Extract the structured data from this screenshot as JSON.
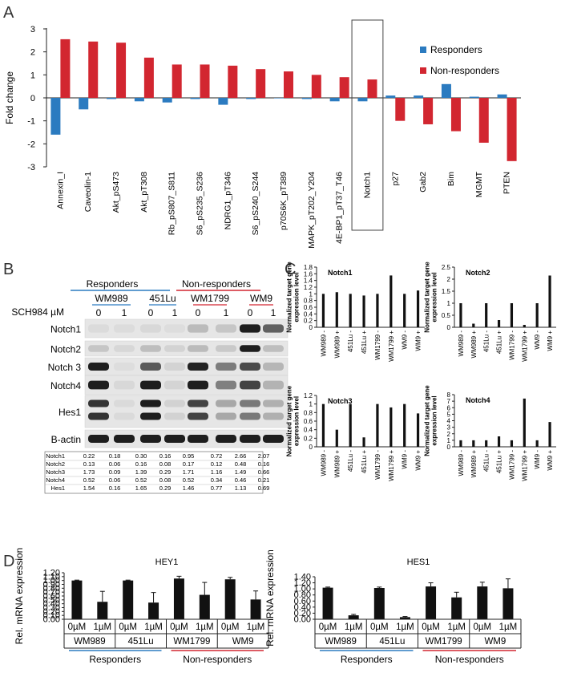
{
  "panel_labels": {
    "a": "A",
    "b": "B",
    "c": "C",
    "d": "D"
  },
  "colors": {
    "responders": "#2b7bc0",
    "non_responders": "#d22630",
    "bar": "#111111"
  },
  "chart_data": [
    {
      "id": "A",
      "type": "bar",
      "ylabel": "Fold change",
      "ylim": [
        -3,
        3
      ],
      "yticks": [
        "3",
        "2",
        "1",
        "0",
        "-1",
        "-2",
        "-3"
      ],
      "categories": [
        "Annexin_I",
        "Caveolin-1",
        "Akt_pS473",
        "Akt_pT308",
        "Rb_pS807_S811",
        "S6_pS235_S236",
        "NDRG1_pT346",
        "S6_pS240_S244",
        "p70S6K_pT389",
        "MAPK_pT202_Y204",
        "4E-BP1_pT37_T46",
        "Notch1",
        "p27",
        "Gab2",
        "Bim",
        "MGMT",
        "PTEN"
      ],
      "highlighted": "Notch1",
      "series": [
        {
          "name": "Responders",
          "values": [
            -1.6,
            -0.5,
            -0.05,
            -0.15,
            -0.2,
            -0.05,
            -0.3,
            -0.05,
            0.0,
            -0.05,
            -0.15,
            -0.15,
            0.1,
            0.1,
            0.6,
            0.05,
            0.15
          ]
        },
        {
          "name": "Non-responders",
          "values": [
            2.55,
            2.45,
            2.4,
            1.75,
            1.45,
            1.45,
            1.4,
            1.25,
            1.15,
            1.0,
            0.9,
            0.8,
            -1.0,
            -1.15,
            -1.45,
            -1.95,
            -2.75
          ]
        }
      ],
      "legend": [
        "Responders",
        "Non-responders"
      ]
    },
    {
      "id": "C-Notch1",
      "type": "bar",
      "title": "Notch1",
      "ylabel": "Normalized target gene expression level",
      "ylim": [
        0,
        1.8
      ],
      "yticks": [
        "0",
        "0.2",
        "0.4",
        "0.6",
        "0.8",
        "1",
        "1.2",
        "1.4",
        "1.6",
        "1.8"
      ],
      "categories": [
        "WM989 -",
        "WM989 +",
        "451Lu -",
        "451Lu +",
        "WM1799 -",
        "WM1799 +",
        "WM9 -",
        "WM9 +"
      ],
      "values": [
        1.0,
        1.05,
        1.0,
        0.95,
        1.0,
        1.55,
        1.0,
        1.1
      ]
    },
    {
      "id": "C-Notch2",
      "type": "bar",
      "title": "Notch2",
      "ylabel": "Normalized target gene expression level",
      "ylim": [
        0,
        2.5
      ],
      "yticks": [
        "0",
        "0.5",
        "1",
        "1.5",
        "2",
        "2.5"
      ],
      "categories": [
        "WM989 -",
        "WM989 +",
        "451Lu -",
        "451Lu +",
        "WM1799 -",
        "WM1799 +",
        "WM9 -",
        "WM9 +"
      ],
      "values": [
        1.0,
        0.15,
        1.0,
        0.3,
        1.0,
        0.1,
        1.0,
        2.15
      ]
    },
    {
      "id": "C-Notch3",
      "type": "bar",
      "title": "Notch3",
      "ylabel": "Normalized target gene expression level",
      "ylim": [
        0,
        1.2
      ],
      "yticks": [
        "0",
        "0.2",
        "0.4",
        "0.6",
        "0.8",
        "1",
        "1.2"
      ],
      "categories": [
        "WM989 -",
        "WM989 +",
        "451Lu -",
        "451Lu +",
        "WM1799 -",
        "WM1799 +",
        "WM9 -",
        "WM9 +"
      ],
      "values": [
        1.0,
        0.4,
        1.0,
        0.22,
        1.0,
        0.92,
        1.0,
        0.78
      ]
    },
    {
      "id": "C-Notch4",
      "type": "bar",
      "title": "Notch4",
      "ylabel": "Normalized target gene expression level",
      "ylim": [
        0,
        8
      ],
      "yticks": [
        "0",
        "1",
        "2",
        "3",
        "4",
        "5",
        "6",
        "7",
        "8"
      ],
      "categories": [
        "WM989 -",
        "WM989 +",
        "451Lu -",
        "451Lu +",
        "WM1799 -",
        "WM1799 +",
        "WM9 -",
        "WM9 +"
      ],
      "values": [
        1.0,
        1.0,
        1.0,
        1.6,
        1.0,
        7.4,
        1.0,
        3.8
      ]
    },
    {
      "id": "D-HEY1",
      "type": "bar",
      "title": "HEY1",
      "ylabel": "Rel. mRNA expression",
      "ylim": [
        0,
        1.2
      ],
      "yticks": [
        "0.00",
        "0.10",
        "0.20",
        "0.30",
        "0.40",
        "0.50",
        "0.60",
        "0.70",
        "0.80",
        "0.90",
        "1.00",
        "1.10",
        "1.20"
      ],
      "categories": [
        "0µM",
        "1µM",
        "0µM",
        "1µM",
        "0µM",
        "1µM",
        "0µM",
        "1µM"
      ],
      "values": [
        1.0,
        0.45,
        1.0,
        0.43,
        1.05,
        0.63,
        1.03,
        0.51
      ],
      "errors": [
        0.01,
        0.27,
        0.01,
        0.26,
        0.06,
        0.32,
        0.05,
        0.22
      ],
      "cell_lines": [
        "WM989",
        "451Lu",
        "WM1799",
        "WM9"
      ],
      "groups": [
        "Responders",
        "Non-responders"
      ]
    },
    {
      "id": "D-HES1",
      "type": "bar",
      "title": "HES1",
      "ylabel": "Rel. mRNA expression",
      "ylim": [
        0,
        1.4
      ],
      "yticks": [
        "0.00",
        "0.20",
        "0.40",
        "0.60",
        "0.80",
        "1.00",
        "1.20",
        "1.40"
      ],
      "categories": [
        "0µM",
        "1µM",
        "0µM",
        "1µM",
        "0µM",
        "1µM",
        "0µM",
        "1µM"
      ],
      "values": [
        1.04,
        0.13,
        1.03,
        0.07,
        1.08,
        0.72,
        1.08,
        1.02
      ],
      "errors": [
        0.02,
        0.03,
        0.03,
        0.02,
        0.12,
        0.17,
        0.14,
        0.31
      ],
      "cell_lines": [
        "WM989",
        "451Lu",
        "WM1799",
        "WM9"
      ],
      "groups": [
        "Responders",
        "Non-responders"
      ]
    }
  ],
  "blot": {
    "groups": [
      "Responders",
      "Non-responders"
    ],
    "cell_lines": [
      "WM989",
      "451Lu",
      "WM1799",
      "WM9"
    ],
    "treatment_label": "SCH984 µM",
    "doses": [
      "0",
      "1",
      "0",
      "1",
      "0",
      "1",
      "0",
      "1"
    ],
    "proteins": [
      "Notch1",
      "Notch2",
      "Notch 3",
      "Notch4",
      "Hes1",
      "B-actin"
    ],
    "band_levels": {
      "Notch1": [
        0.22,
        0.18,
        0.3,
        0.16,
        0.95,
        0.72,
        2.66,
        2.07
      ],
      "Notch2": [
        0.13,
        0.06,
        0.16,
        0.08,
        0.17,
        0.12,
        0.48,
        0.16
      ],
      "Notch 3": [
        1.73,
        0.09,
        1.39,
        0.29,
        1.71,
        1.16,
        1.49,
        0.66
      ],
      "Notch4": [
        0.52,
        0.06,
        0.52,
        0.08,
        0.52,
        0.34,
        0.46,
        0.21
      ],
      "Hes1": [
        1.54,
        0.16,
        1.65,
        0.29,
        1.46,
        0.77,
        1.13,
        0.69
      ],
      "B-actin": [
        1.0,
        1.0,
        1.0,
        1.0,
        1.0,
        1.0,
        1.0,
        1.0
      ]
    },
    "quant_table": {
      "rows": [
        {
          "label": "Notch1",
          "values": [
            "0.22",
            "0.18",
            "0.30",
            "0.16",
            "0.95",
            "0.72",
            "2.66",
            "2.07"
          ]
        },
        {
          "label": "Notch2",
          "values": [
            "0.13",
            "0.06",
            "0.16",
            "0.08",
            "0.17",
            "0.12",
            "0.48",
            "0.16"
          ]
        },
        {
          "label": "Notch3",
          "values": [
            "1.73",
            "0.09",
            "1.39",
            "0.29",
            "1.71",
            "1.16",
            "1.49",
            "0.66"
          ]
        },
        {
          "label": "Notch4",
          "values": [
            "0.52",
            "0.06",
            "0.52",
            "0.08",
            "0.52",
            "0.34",
            "0.46",
            "0.21"
          ]
        },
        {
          "label": "Hes1",
          "values": [
            "1.54",
            "0.16",
            "1.65",
            "0.29",
            "1.46",
            "0.77",
            "1.13",
            "0.69"
          ]
        }
      ]
    }
  }
}
